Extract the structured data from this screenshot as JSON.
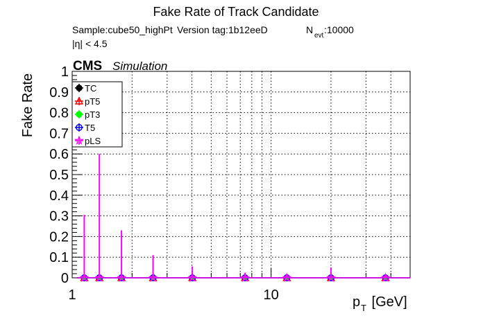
{
  "chart_data": {
    "type": "scatter",
    "title": "Fake Rate of Track Candidate",
    "subtitle_sample": "Sample:cube50_highPt",
    "subtitle_version": "Version tag:1b12eeD",
    "subtitle_nevt_prefix": "N",
    "subtitle_nevt_sub": "evt",
    "subtitle_nevt_value": ":10000",
    "cut_label": "|η| < 4.5",
    "cms_label": "CMS",
    "simulation_label": "Simulation",
    "ylabel": "Fake Rate",
    "xlabel_main": "p",
    "xlabel_sub": "T",
    "xlabel_unit": " [GeV]",
    "xscale": "log",
    "xlim": [
      1,
      50
    ],
    "ylim": [
      0,
      1
    ],
    "grid": true,
    "legend_position": "top-left",
    "x_tick_labels": [
      {
        "value": 1,
        "label": "1"
      },
      {
        "value": 10,
        "label": "10"
      }
    ],
    "y_tick_labels": [
      {
        "value": 0,
        "label": "0"
      },
      {
        "value": 0.1,
        "label": "0.1"
      },
      {
        "value": 0.2,
        "label": "0.2"
      },
      {
        "value": 0.3,
        "label": "0.3"
      },
      {
        "value": 0.4,
        "label": "0.4"
      },
      {
        "value": 0.5,
        "label": "0.5"
      },
      {
        "value": 0.6,
        "label": "0.6"
      },
      {
        "value": 0.7,
        "label": "0.7"
      },
      {
        "value": 0.8,
        "label": "0.8"
      },
      {
        "value": 0.9,
        "label": "0.9"
      },
      {
        "value": 1,
        "label": "1"
      }
    ],
    "x": [
      1.15,
      1.37,
      1.77,
      2.55,
      4.02,
      7.4,
      12.0,
      20.0,
      37.6
    ],
    "series": [
      {
        "name": "TC",
        "color": "#000000",
        "marker": "filled-circle",
        "values": [
          0,
          0,
          0,
          0,
          0,
          0,
          0,
          0,
          0
        ]
      },
      {
        "name": "pT5",
        "color": "#ff0000",
        "marker": "open-triangle",
        "values": [
          0,
          0,
          0,
          0,
          0,
          0,
          0,
          0,
          0
        ]
      },
      {
        "name": "pT3",
        "color": "#00ff00",
        "marker": "filled-circle",
        "values": [
          0,
          0,
          0,
          0,
          0,
          0,
          0,
          0,
          0
        ]
      },
      {
        "name": "T5",
        "color": "#0000ff",
        "marker": "open-circle",
        "values": [
          0,
          0,
          0,
          0,
          0,
          0,
          0,
          0,
          0
        ]
      },
      {
        "name": "pLS",
        "color": "#ff00ff",
        "marker": "open-star",
        "values": [
          0,
          0,
          0,
          0,
          0,
          0,
          0,
          0,
          0
        ],
        "error_hi": [
          0.305,
          0.6,
          0.23,
          0.11,
          0.055,
          0.025,
          0.02,
          0.05,
          0.01
        ]
      }
    ]
  }
}
